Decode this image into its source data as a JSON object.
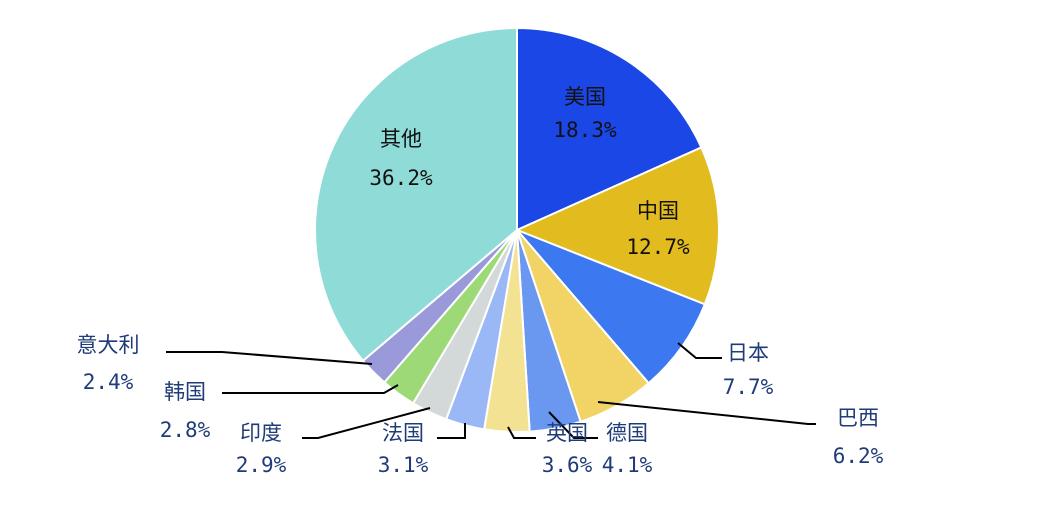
{
  "chart_data": {
    "type": "pie",
    "title": "",
    "start": "12 o'clock",
    "direction": "clockwise",
    "slices": [
      {
        "label": "美国",
        "value": 18.3,
        "display": "18.3%",
        "color": "#1a47e6"
      },
      {
        "label": "中国",
        "value": 12.7,
        "display": "12.7%",
        "color": "#e2bb1f"
      },
      {
        "label": "日本",
        "value": 7.7,
        "display": "7.7%",
        "color": "#3c78ef"
      },
      {
        "label": "巴西",
        "value": 6.2,
        "display": "6.2%",
        "color": "#f1d465"
      },
      {
        "label": "德国",
        "value": 4.1,
        "display": "4.1%",
        "color": "#6a98f1"
      },
      {
        "label": "英国",
        "value": 3.6,
        "display": "3.6%",
        "color": "#f4e293"
      },
      {
        "label": "法国",
        "value": 3.1,
        "display": "3.1%",
        "color": "#9ab8f6"
      },
      {
        "label": "印度",
        "value": 2.9,
        "display": "2.9%",
        "color": "#d3d8d8"
      },
      {
        "label": "韩国",
        "value": 2.8,
        "display": "2.8%",
        "color": "#9ed978"
      },
      {
        "label": "意大利",
        "value": 2.4,
        "display": "2.4%",
        "color": "#9a9ada"
      },
      {
        "label": "其他",
        "value": 36.2,
        "display": "36.2%",
        "color": "#8fdbd7"
      }
    ]
  },
  "colors": {
    "inside_text": "#111111",
    "outside_text": "#1f3b78",
    "leader_line": "#000000",
    "slice_border": "#ffffff"
  }
}
